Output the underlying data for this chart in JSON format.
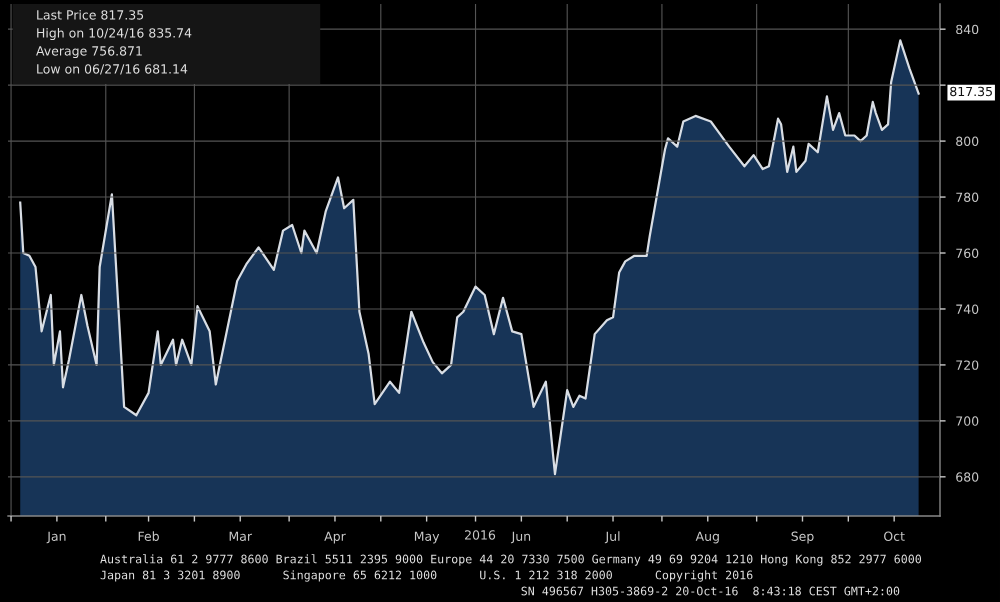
{
  "chart_data": {
    "type": "area",
    "xlabel": "2016",
    "x": [
      "2016-01-04",
      "2016-01-05",
      "2016-01-07",
      "2016-01-09",
      "2016-01-11",
      "2016-01-14",
      "2016-01-15",
      "2016-01-17",
      "2016-01-18",
      "2016-01-20",
      "2016-01-24",
      "2016-01-26",
      "2016-01-29",
      "2016-01-30",
      "2016-02-03",
      "2016-02-07",
      "2016-02-11",
      "2016-02-15",
      "2016-02-18",
      "2016-02-19",
      "2016-02-23",
      "2016-02-24",
      "2016-02-26",
      "2016-02-29",
      "2016-03-02",
      "2016-03-06",
      "2016-03-08",
      "2016-03-15",
      "2016-03-18",
      "2016-03-22",
      "2016-03-27",
      "2016-03-30",
      "2016-04-02",
      "2016-04-05",
      "2016-04-06",
      "2016-04-10",
      "2016-04-13",
      "2016-04-17",
      "2016-04-19",
      "2016-04-22",
      "2016-04-24",
      "2016-04-27",
      "2016-04-29",
      "2016-05-04",
      "2016-05-07",
      "2016-05-11",
      "2016-05-15",
      "2016-05-18",
      "2016-05-21",
      "2016-05-24",
      "2016-05-26",
      "2016-05-28",
      "2016-06-01",
      "2016-06-04",
      "2016-06-07",
      "2016-06-10",
      "2016-06-13",
      "2016-06-16",
      "2016-06-20",
      "2016-06-24",
      "2016-06-27",
      "2016-07-01",
      "2016-07-03",
      "2016-07-05",
      "2016-07-07",
      "2016-07-10",
      "2016-07-14",
      "2016-07-16",
      "2016-07-18",
      "2016-07-20",
      "2016-07-23",
      "2016-07-27",
      "2016-07-28",
      "2016-08-02",
      "2016-08-03",
      "2016-08-06",
      "2016-08-08",
      "2016-08-12",
      "2016-08-17",
      "2016-08-19",
      "2016-08-23",
      "2016-08-28",
      "2016-08-31",
      "2016-09-03",
      "2016-09-05",
      "2016-09-08",
      "2016-09-09",
      "2016-09-11",
      "2016-09-13",
      "2016-09-14",
      "2016-09-17",
      "2016-09-18",
      "2016-09-21",
      "2016-09-24",
      "2016-09-26",
      "2016-09-28",
      "2016-09-30",
      "2016-10-03",
      "2016-10-05",
      "2016-10-07",
      "2016-10-09",
      "2016-10-10",
      "2016-10-12",
      "2016-10-14",
      "2016-10-15",
      "2016-10-18",
      "2016-10-21",
      "2016-10-24"
    ],
    "series": [
      {
        "color": "#d8dde4",
        "values": [
          778,
          760,
          759,
          755,
          732,
          745,
          720,
          732,
          712,
          722,
          745,
          734,
          720,
          755,
          781,
          705,
          702,
          710,
          732,
          720,
          729,
          720,
          729,
          720,
          741,
          732,
          713,
          750,
          756,
          762,
          754,
          768,
          770,
          760,
          768,
          760,
          775,
          787,
          776,
          779,
          739,
          724,
          706,
          714,
          710,
          739,
          728,
          721,
          717,
          720,
          737,
          739,
          748,
          745,
          731,
          744,
          732,
          731,
          705,
          714,
          681,
          711,
          705,
          709,
          708,
          731,
          736,
          737,
          753,
          757,
          759,
          759,
          766,
          797,
          801,
          798,
          807,
          809,
          807,
          804,
          798,
          791,
          795,
          790,
          791,
          808,
          806,
          789,
          798,
          789,
          793,
          799,
          796,
          816,
          804,
          810,
          802,
          802,
          800,
          802,
          814,
          810,
          804,
          806,
          821,
          836,
          826,
          817
        ]
      }
    ],
    "xlim": [
      "2015-12-31",
      "2016-10-31"
    ],
    "xticks": [
      {
        "value": "2016-01-01",
        "label": null
      },
      {
        "value": "2016-01-16",
        "label": "Jan"
      },
      {
        "value": "2016-02-01",
        "label": null
      },
      {
        "value": "2016-02-15",
        "label": "Feb"
      },
      {
        "value": "2016-03-01",
        "label": null
      },
      {
        "value": "2016-03-16",
        "label": "Mar"
      },
      {
        "value": "2016-04-01",
        "label": null
      },
      {
        "value": "2016-04-16",
        "label": "Apr"
      },
      {
        "value": "2016-05-01",
        "label": null
      },
      {
        "value": "2016-05-16",
        "label": "May"
      },
      {
        "value": "2016-06-01",
        "label": null
      },
      {
        "value": "2016-06-16",
        "label": "Jun"
      },
      {
        "value": "2016-07-01",
        "label": null
      },
      {
        "value": "2016-07-16",
        "label": "Jul"
      },
      {
        "value": "2016-08-01",
        "label": null
      },
      {
        "value": "2016-08-16",
        "label": "Aug"
      },
      {
        "value": "2016-09-01",
        "label": null
      },
      {
        "value": "2016-09-16",
        "label": "Sep"
      },
      {
        "value": "2016-10-01",
        "label": null
      },
      {
        "value": "2016-10-16",
        "label": "Oct"
      }
    ],
    "ylim": [
      666,
      849
    ],
    "yticks": [
      680,
      700,
      720,
      740,
      760,
      780,
      800,
      {
        "value": 820,
        "label": null
      },
      840
    ],
    "grid": true,
    "annotations": [
      "Last Price 817.35",
      "High on 10/24/16 835.74",
      "Average 756.871",
      "Low on 06/27/16 681.14",
      {
        "text": "817.35",
        "x": "2016-10-24",
        "y": 817.35
      },
      "Australia 61 2 9777 8600 Brazil 5511 2395 9000 Europe 44 20 7330 7500 Germany 49 69 9204 1210 Hong Kong 852 2977 6000",
      "Japan 81 3 3201 8900      Singapore 65 6212 1000      U.S. 1 212 318 2000      Copyright 2016",
      "SN 496567 H305-3869-2 20-Oct-16  8:43:18 CEST GMT+2:00"
    ]
  }
}
